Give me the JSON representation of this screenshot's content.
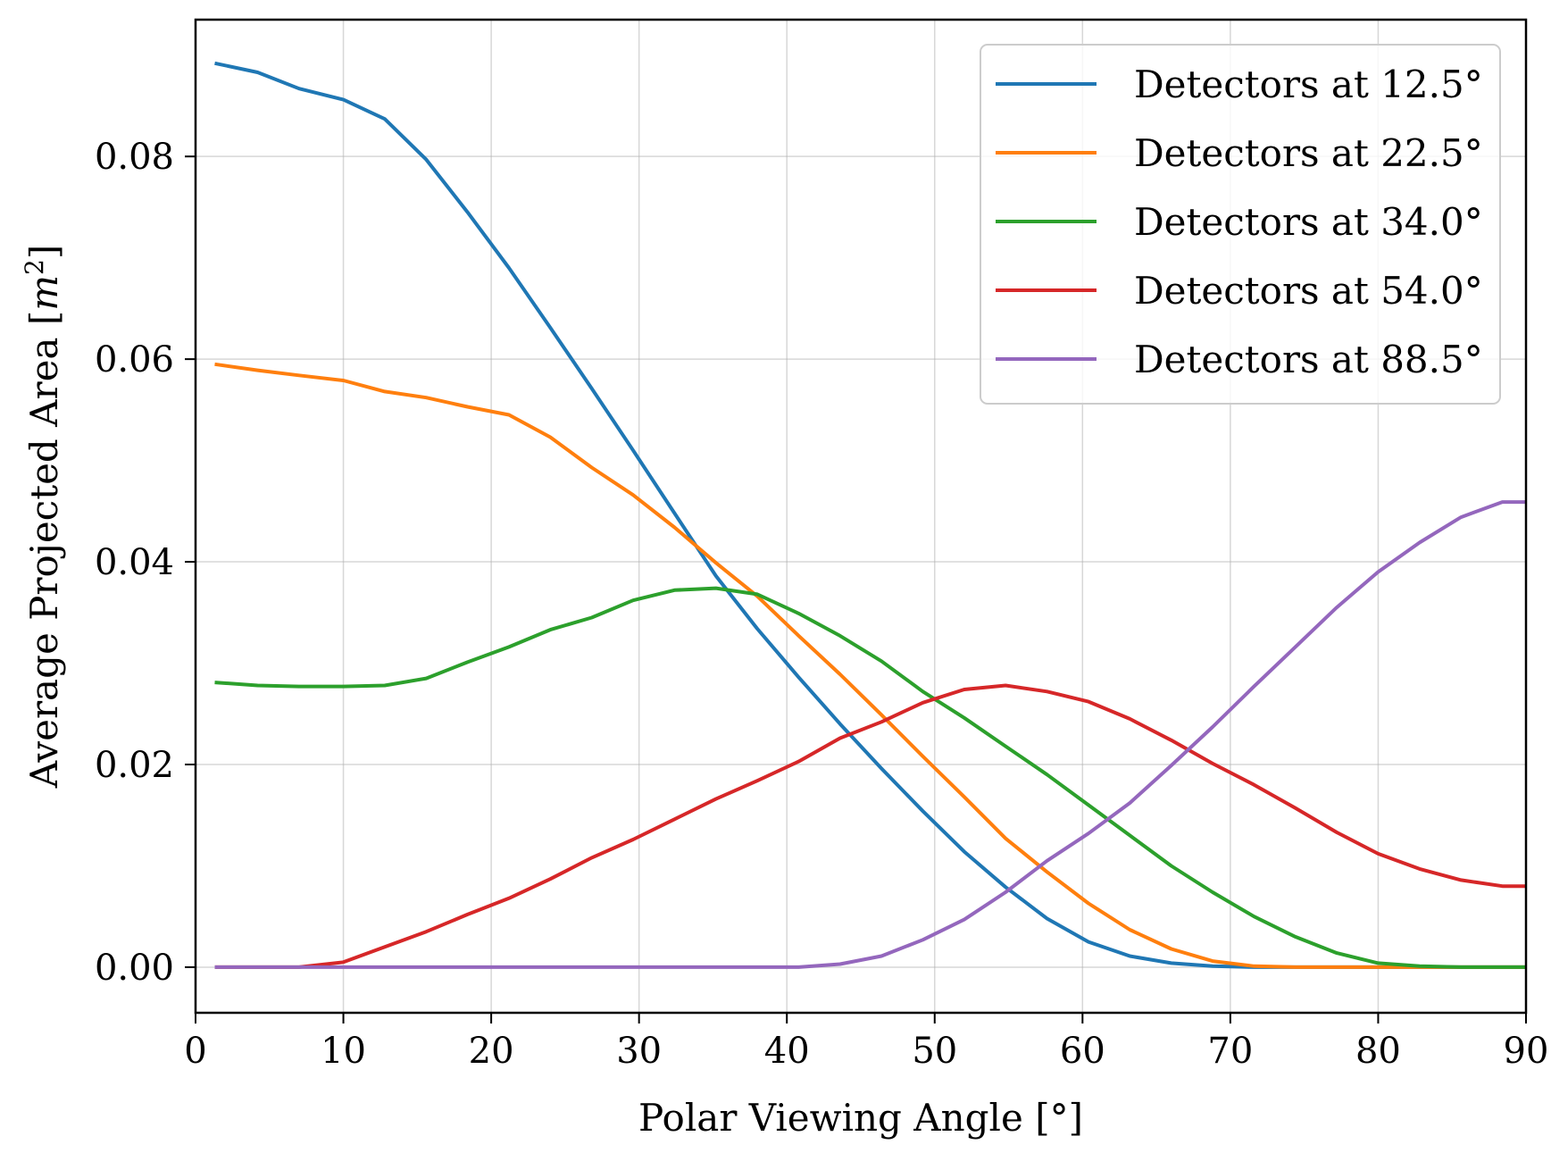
{
  "chart_data": {
    "type": "line",
    "xlabel": "Polar Viewing Angle [°]",
    "ylabel_main": "Average Projected Area [",
    "ylabel_var": "m",
    "ylabel_sup": "2",
    "ylabel_close": "]",
    "xlim": [
      0,
      90
    ],
    "ylim": [
      -0.0045,
      0.0935
    ],
    "xticks": [
      0,
      10,
      20,
      30,
      40,
      50,
      60,
      70,
      80,
      90
    ],
    "yticks": [
      0.0,
      0.02,
      0.04,
      0.06,
      0.08
    ],
    "xtick_labels": [
      "0",
      "10",
      "20",
      "30",
      "40",
      "50",
      "60",
      "70",
      "80",
      "90"
    ],
    "ytick_labels": [
      "0.00",
      "0.02",
      "0.04",
      "0.06",
      "0.08"
    ],
    "grid": true,
    "legend_position": "top-right",
    "x": [
      1.3,
      4.2,
      7.0,
      10.0,
      12.8,
      15.6,
      18.4,
      21.2,
      24.0,
      26.8,
      29.6,
      32.4,
      35.2,
      38.0,
      40.8,
      43.6,
      46.4,
      49.2,
      52.0,
      54.8,
      57.6,
      60.4,
      63.2,
      66.0,
      68.8,
      71.6,
      74.4,
      77.2,
      80.0,
      82.8,
      85.6,
      88.4,
      90.0
    ],
    "series": [
      {
        "name": "Detectors at 12.5°",
        "color": "#1f77b4",
        "values": [
          0.0892,
          0.0883,
          0.0867,
          0.0856,
          0.0837,
          0.0797,
          0.0745,
          0.069,
          0.0631,
          0.0571,
          0.051,
          0.0448,
          0.0386,
          0.0334,
          0.0286,
          0.024,
          0.0196,
          0.0154,
          0.0114,
          0.0079,
          0.0048,
          0.0025,
          0.0011,
          0.0004,
          0.0001,
          0.0,
          0.0,
          0.0,
          0.0,
          0.0,
          0.0,
          0.0,
          0.0
        ]
      },
      {
        "name": "Detectors at 22.5°",
        "color": "#ff7f0e",
        "values": [
          0.0595,
          0.0589,
          0.0584,
          0.0579,
          0.0568,
          0.0562,
          0.0553,
          0.0545,
          0.0523,
          0.0493,
          0.0466,
          0.0434,
          0.0399,
          0.0366,
          0.0327,
          0.0289,
          0.0249,
          0.0208,
          0.0168,
          0.0127,
          0.0094,
          0.0063,
          0.0037,
          0.0018,
          0.0006,
          0.0001,
          0.0,
          0.0,
          0.0,
          0.0,
          0.0,
          0.0,
          0.0
        ]
      },
      {
        "name": "Detectors at 34.0°",
        "color": "#2ca02c",
        "values": [
          0.0281,
          0.0278,
          0.0277,
          0.0277,
          0.0278,
          0.0285,
          0.0301,
          0.0316,
          0.0333,
          0.0345,
          0.0362,
          0.0372,
          0.0374,
          0.0368,
          0.0349,
          0.0327,
          0.0302,
          0.0272,
          0.0246,
          0.0218,
          0.019,
          0.016,
          0.013,
          0.01,
          0.0074,
          0.005,
          0.003,
          0.0014,
          0.0004,
          0.0001,
          0.0,
          0.0,
          0.0
        ]
      },
      {
        "name": "Detectors at 54.0°",
        "color": "#d62728",
        "values": [
          0.0,
          0.0,
          0.0,
          0.0005,
          0.002,
          0.0035,
          0.0052,
          0.0068,
          0.0087,
          0.0108,
          0.0126,
          0.0146,
          0.0166,
          0.0184,
          0.0203,
          0.0226,
          0.0242,
          0.0261,
          0.0274,
          0.0278,
          0.0272,
          0.0262,
          0.0245,
          0.0224,
          0.0201,
          0.018,
          0.0157,
          0.0133,
          0.0112,
          0.0097,
          0.0086,
          0.008,
          0.008
        ]
      },
      {
        "name": "Detectors at 88.5°",
        "color": "#9467bd",
        "values": [
          0.0,
          0.0,
          0.0,
          0.0,
          0.0,
          0.0,
          0.0,
          0.0,
          0.0,
          0.0,
          0.0,
          0.0,
          0.0,
          0.0,
          0.0,
          0.0003,
          0.0011,
          0.0027,
          0.0047,
          0.0074,
          0.0105,
          0.0132,
          0.0162,
          0.0199,
          0.0237,
          0.0277,
          0.0316,
          0.0355,
          0.039,
          0.0419,
          0.0444,
          0.0459,
          0.0459
        ]
      }
    ]
  }
}
